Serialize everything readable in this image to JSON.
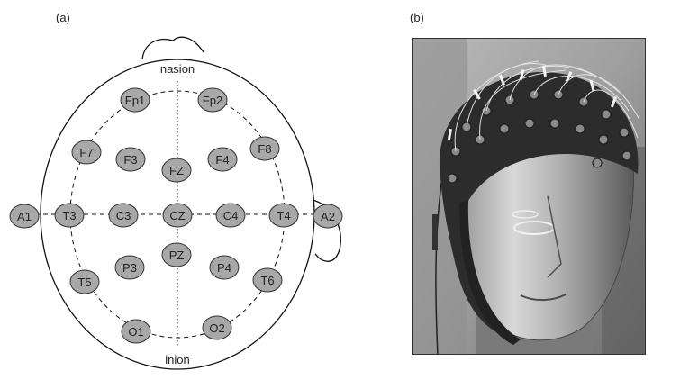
{
  "panels": {
    "a": {
      "label": "(a)"
    },
    "b": {
      "label": "(b)"
    }
  },
  "landmarks": {
    "nasion": "nasion",
    "inion": "inion"
  },
  "electrodes": {
    "fp1": "Fp1",
    "fp2": "Fp2",
    "f7": "F7",
    "f3": "F3",
    "fz": "FZ",
    "f4": "F4",
    "f8": "F8",
    "a1": "A1",
    "t3": "T3",
    "c3": "C3",
    "cz": "CZ",
    "c4": "C4",
    "t4": "T4",
    "a2": "A2",
    "t5": "T5",
    "p3": "P3",
    "pz": "PZ",
    "p4": "P4",
    "t6": "T6",
    "o1": "O1",
    "o2": "O2"
  },
  "colors": {
    "electrode_fill": "#a8a8a8",
    "outline": "#111111"
  }
}
